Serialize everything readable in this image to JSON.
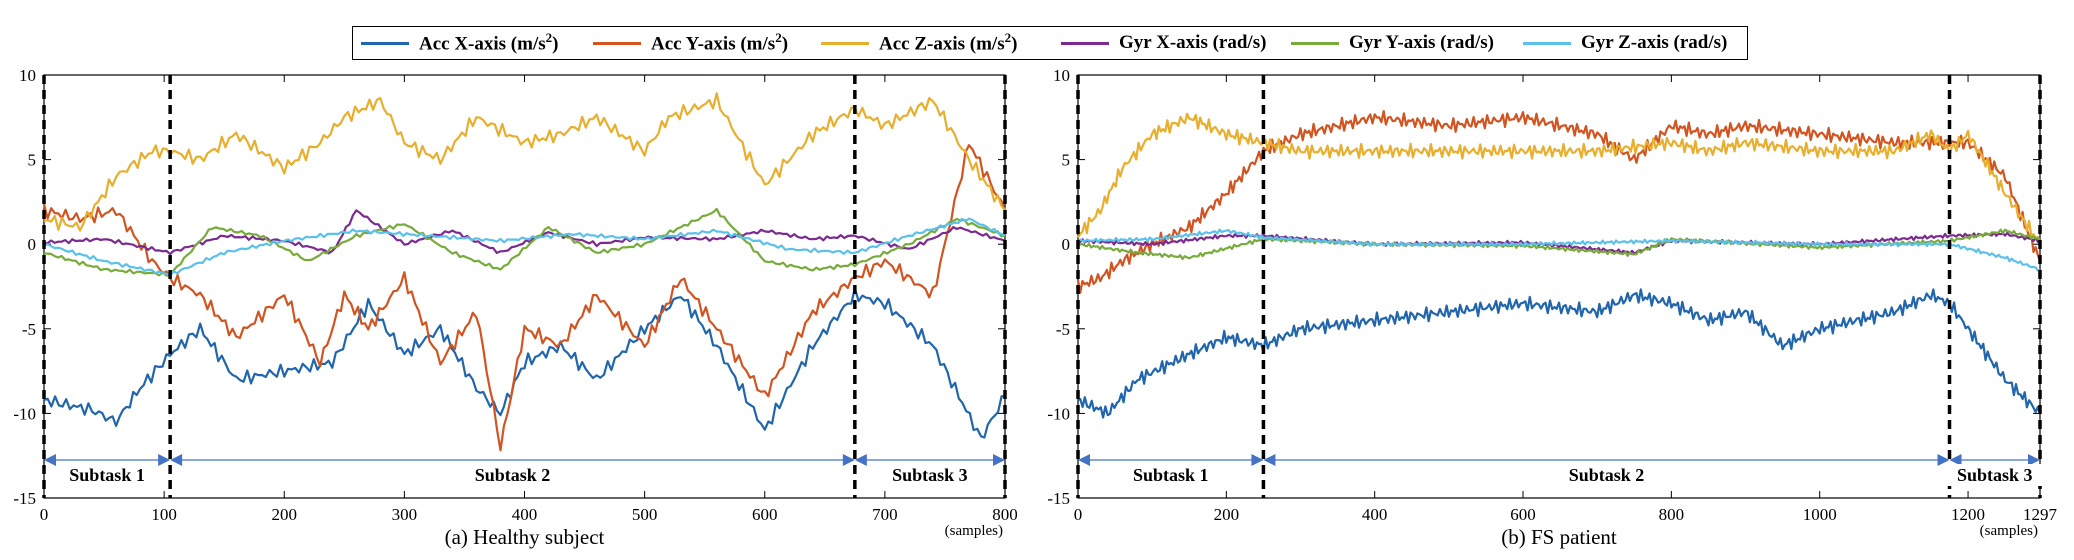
{
  "legend": [
    {
      "label": "Acc X-axis (m/s",
      "sup": "2",
      "tail": ")",
      "color": "#2166ac"
    },
    {
      "label": "Acc Y-axis (m/s",
      "sup": "2",
      "tail": ")",
      "color": "#d15421"
    },
    {
      "label": "Acc Z-axis (m/s",
      "sup": "2",
      "tail": ")",
      "color": "#e8ae2e"
    },
    {
      "label": "Gyr X-axis (rad/s)",
      "sup": "",
      "tail": "",
      "color": "#7b2a90"
    },
    {
      "label": "Gyr Y-axis (rad/s)",
      "sup": "",
      "tail": "",
      "color": "#77ab3a"
    },
    {
      "label": "Gyr Z-axis (rad/s)",
      "sup": "",
      "tail": "",
      "color": "#5bc0ea"
    }
  ],
  "chart_data": [
    {
      "type": "line",
      "title": "(a) Healthy subject",
      "xlabel": "(samples)",
      "xlim": [
        0,
        800
      ],
      "ylim": [
        -15,
        10
      ],
      "xticks": [
        0,
        100,
        200,
        300,
        400,
        500,
        600,
        700,
        800
      ],
      "yticks": [
        10,
        5,
        0,
        -5,
        -10,
        -15
      ],
      "boundaries": [
        0,
        105,
        675,
        800
      ],
      "subtasks": [
        {
          "label": "Subtask 1",
          "from": 0,
          "to": 105
        },
        {
          "label": "Subtask 2",
          "from": 105,
          "to": 675
        },
        {
          "label": "Subtask 3",
          "from": 675,
          "to": 800
        }
      ],
      "series": [
        {
          "name": "Acc X-axis",
          "x": [
            0,
            40,
            60,
            80,
            105,
            130,
            160,
            200,
            240,
            270,
            300,
            330,
            360,
            380,
            400,
            430,
            460,
            500,
            530,
            560,
            600,
            640,
            675,
            700,
            740,
            780,
            800
          ],
          "y": [
            -9.2,
            -9.8,
            -10.5,
            -8.5,
            -6.5,
            -5,
            -8,
            -7.5,
            -7,
            -3.5,
            -6.5,
            -5,
            -8.5,
            -10,
            -7,
            -6,
            -8,
            -5,
            -3,
            -6,
            -11,
            -6,
            -3,
            -3.5,
            -6,
            -11.5,
            -9
          ]
        },
        {
          "name": "Acc Y-axis",
          "x": [
            0,
            30,
            60,
            90,
            105,
            130,
            160,
            200,
            230,
            250,
            270,
            300,
            330,
            360,
            380,
            400,
            430,
            460,
            500,
            530,
            560,
            600,
            640,
            675,
            700,
            740,
            770,
            800
          ],
          "y": [
            2,
            1.5,
            2,
            -1,
            -2,
            -3,
            -5.5,
            -3,
            -7,
            -3,
            -5,
            -2,
            -7,
            -4,
            -12,
            -5,
            -6,
            -3,
            -6,
            -2,
            -5,
            -9,
            -4,
            -2,
            -1,
            -3,
            6,
            2
          ]
        },
        {
          "name": "Acc Z-axis",
          "x": [
            0,
            30,
            60,
            90,
            105,
            130,
            160,
            200,
            230,
            250,
            280,
            300,
            330,
            360,
            400,
            430,
            460,
            500,
            520,
            560,
            600,
            640,
            675,
            700,
            740,
            770,
            800
          ],
          "y": [
            1.5,
            1,
            4,
            5.5,
            5.5,
            5,
            6.5,
            4.5,
            6,
            7.5,
            8.5,
            6,
            5,
            7.5,
            6,
            6.5,
            7.5,
            5.5,
            7.5,
            8.5,
            3.5,
            6.5,
            8,
            7,
            8.5,
            5,
            2
          ]
        },
        {
          "name": "Gyr X-axis",
          "x": [
            0,
            50,
            105,
            150,
            200,
            240,
            260,
            300,
            340,
            380,
            420,
            460,
            500,
            560,
            600,
            640,
            675,
            720,
            760,
            800
          ],
          "y": [
            0.1,
            0.3,
            -0.5,
            0.5,
            0.2,
            -0.5,
            2,
            0,
            0.8,
            -0.5,
            0.7,
            0,
            0.4,
            0.3,
            0.8,
            0.3,
            0.5,
            -0.3,
            1,
            0.2
          ]
        },
        {
          "name": "Gyr Y-axis",
          "x": [
            0,
            50,
            105,
            140,
            180,
            220,
            260,
            300,
            340,
            380,
            420,
            460,
            500,
            560,
            600,
            640,
            675,
            720,
            760,
            800
          ],
          "y": [
            -0.5,
            -1.5,
            -1.8,
            1,
            0.5,
            -1,
            0.5,
            1.2,
            -0.5,
            -1.5,
            1,
            -0.5,
            0,
            2,
            -1,
            -1.5,
            -1.2,
            0,
            1.5,
            0.5
          ]
        },
        {
          "name": "Gyr Z-axis",
          "x": [
            0,
            50,
            105,
            150,
            200,
            260,
            320,
            380,
            440,
            500,
            560,
            620,
            675,
            720,
            770,
            800
          ],
          "y": [
            0,
            -1,
            -1.8,
            -0.5,
            0.2,
            0.8,
            0.5,
            0.2,
            0.6,
            0.3,
            0.8,
            -0.3,
            -0.5,
            0.5,
            1.5,
            0.5
          ]
        }
      ]
    },
    {
      "type": "line",
      "title": "(b) FS patient",
      "xlabel": "(samples)",
      "xlim": [
        0,
        1297
      ],
      "ylim": [
        -15,
        10
      ],
      "xticks": [
        0,
        200,
        400,
        600,
        800,
        1000,
        1200,
        1297
      ],
      "yticks": [
        10,
        5,
        0,
        -5,
        -10,
        -15
      ],
      "boundaries": [
        0,
        250,
        1175,
        1297
      ],
      "subtasks": [
        {
          "label": "Subtask 1",
          "from": 0,
          "to": 250
        },
        {
          "label": "Subtask 2",
          "from": 250,
          "to": 1175
        },
        {
          "label": "Subtask 3",
          "from": 1175,
          "to": 1297
        }
      ],
      "series": [
        {
          "name": "Acc X-axis",
          "x": [
            0,
            40,
            80,
            150,
            200,
            250,
            300,
            400,
            500,
            600,
            700,
            750,
            800,
            850,
            900,
            950,
            1000,
            1050,
            1100,
            1150,
            1175,
            1200,
            1250,
            1297
          ],
          "y": [
            -9.2,
            -10,
            -8,
            -6.5,
            -5.5,
            -6,
            -5,
            -4.5,
            -4,
            -3.5,
            -4,
            -3,
            -3.5,
            -4.5,
            -4,
            -6,
            -5,
            -4.5,
            -4,
            -3,
            -3.5,
            -5,
            -8,
            -10
          ]
        },
        {
          "name": "Acc Y-axis",
          "x": [
            0,
            30,
            60,
            100,
            150,
            200,
            250,
            300,
            350,
            400,
            500,
            600,
            700,
            750,
            800,
            850,
            900,
            1000,
            1100,
            1175,
            1200,
            1250,
            1297
          ],
          "y": [
            -2.5,
            -2,
            -1,
            0,
            1,
            3,
            5.5,
            6.5,
            7,
            7.5,
            7,
            7.5,
            6.5,
            5,
            7,
            6.5,
            7,
            6.5,
            6,
            6,
            6,
            4,
            -1
          ]
        },
        {
          "name": "Acc Z-axis",
          "x": [
            0,
            30,
            60,
            100,
            150,
            200,
            250,
            300,
            400,
            500,
            600,
            700,
            800,
            850,
            900,
            1000,
            1100,
            1150,
            1175,
            1200,
            1250,
            1297
          ],
          "y": [
            0.5,
            2,
            4.5,
            6.5,
            7.5,
            6.5,
            6,
            5.5,
            5.5,
            5.5,
            5.5,
            5.5,
            6,
            5.5,
            6,
            5.5,
            5.5,
            6.5,
            5.5,
            6.5,
            3,
            0
          ]
        },
        {
          "name": "Gyr X-axis",
          "x": [
            0,
            100,
            200,
            250,
            400,
            600,
            750,
            800,
            1000,
            1175,
            1250,
            1297
          ],
          "y": [
            0.2,
            0,
            0.5,
            0.5,
            0,
            0.1,
            -0.5,
            0.2,
            0,
            0.5,
            0.6,
            0.2
          ]
        },
        {
          "name": "Gyr Y-axis",
          "x": [
            0,
            80,
            150,
            250,
            400,
            600,
            750,
            800,
            1000,
            1175,
            1250,
            1297
          ],
          "y": [
            0,
            -0.5,
            -0.8,
            0.3,
            0,
            -0.1,
            -0.6,
            0.3,
            -0.2,
            0.2,
            0.8,
            0.3
          ]
        },
        {
          "name": "Gyr Z-axis",
          "x": [
            0,
            100,
            200,
            250,
            400,
            600,
            800,
            1000,
            1175,
            1250,
            1297
          ],
          "y": [
            0.2,
            0.3,
            0.8,
            0.4,
            0,
            0,
            0.2,
            0,
            0,
            -0.8,
            -1.5
          ]
        }
      ]
    }
  ]
}
